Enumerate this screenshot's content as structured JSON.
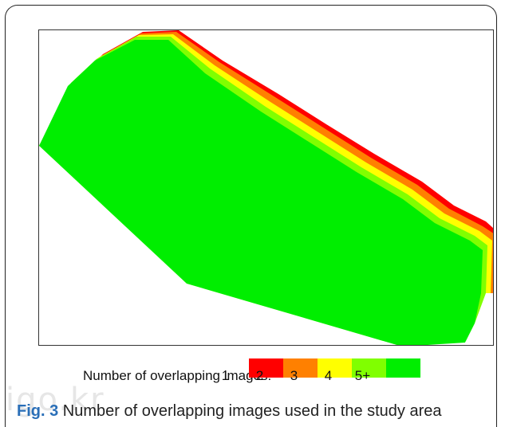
{
  "figure": {
    "label": "Fig. 3",
    "caption": " Number of overlapping images used in the study area"
  },
  "legend": {
    "title": "Number of overlapping images:",
    "classes": [
      {
        "label": "1",
        "color": "#ff0000"
      },
      {
        "label": "2",
        "color": "#ff8000"
      },
      {
        "label": "3",
        "color": "#ffff00"
      },
      {
        "label": "4",
        "color": "#80ff00"
      },
      {
        "label": "5+",
        "color": "#00ee00"
      }
    ]
  },
  "watermark": "igo.kr"
}
